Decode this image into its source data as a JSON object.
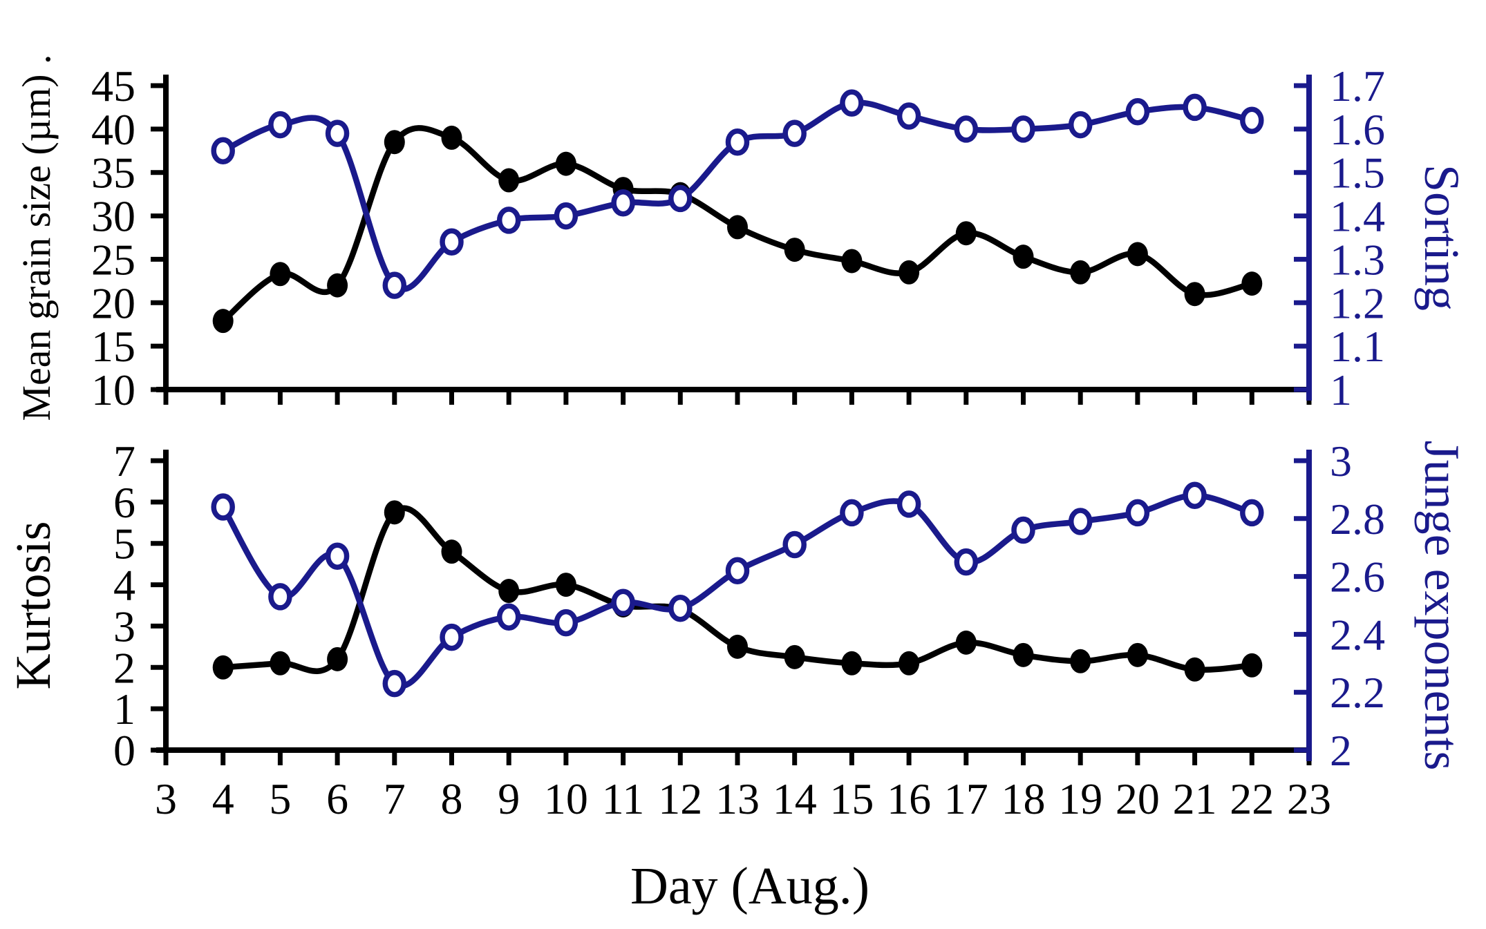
{
  "x_axis_label": "Day (Aug.)",
  "colors": {
    "black_series": "#000000",
    "blue_series": "#1a1a8c",
    "background": "#ffffff"
  },
  "chart_data": [
    {
      "type": "line",
      "panel": "top",
      "x": {
        "label": "Day (Aug.)",
        "range": [
          3,
          23
        ],
        "tick_step": 1,
        "days": [
          4,
          5,
          6,
          7,
          8,
          9,
          10,
          11,
          12,
          13,
          14,
          15,
          16,
          17,
          18,
          19,
          20,
          21,
          22
        ]
      },
      "left_axis": {
        "label": "Mean grain size (µm) .",
        "range": [
          10,
          45
        ],
        "ticks": [
          45,
          40,
          35,
          30,
          25,
          20,
          15,
          10
        ],
        "color": "#000000"
      },
      "right_axis": {
        "label": "Sorting",
        "range": [
          1,
          1.7
        ],
        "ticks": [
          1.7,
          1.6,
          1.5,
          1.4,
          1.3,
          1.2,
          1.1,
          1
        ],
        "color": "#1a1a8c"
      },
      "series": [
        {
          "name": "mean-grain-size",
          "label": "Mean grain size",
          "axis": "left",
          "marker": "filled-circle",
          "color": "#000000",
          "values": [
            17.9,
            23.3,
            22.0,
            38.5,
            39.0,
            34.1,
            36.0,
            33.1,
            32.5,
            28.7,
            26.1,
            24.8,
            23.5,
            28.0,
            25.3,
            23.5,
            25.6,
            21.0,
            22.2
          ]
        },
        {
          "name": "sorting",
          "label": "Sorting",
          "axis": "right",
          "marker": "open-circle",
          "color": "#1a1a8c",
          "values": [
            1.55,
            1.61,
            1.59,
            1.24,
            1.34,
            1.39,
            1.4,
            1.43,
            1.44,
            1.57,
            1.59,
            1.66,
            1.63,
            1.6,
            1.6,
            1.61,
            1.64,
            1.65,
            1.62
          ]
        }
      ]
    },
    {
      "type": "line",
      "panel": "bottom",
      "x": {
        "label": "Day (Aug.)",
        "range": [
          3,
          23
        ],
        "tick_step": 1,
        "days": [
          4,
          5,
          6,
          7,
          8,
          9,
          10,
          11,
          12,
          13,
          14,
          15,
          16,
          17,
          18,
          19,
          20,
          21,
          22
        ]
      },
      "left_axis": {
        "label": "Kurtosis",
        "range": [
          0,
          7
        ],
        "ticks": [
          7,
          6,
          5,
          4,
          3,
          2,
          1,
          0
        ],
        "color": "#000000"
      },
      "right_axis": {
        "label": "Junge exponents",
        "range": [
          2,
          3
        ],
        "ticks": [
          3,
          2.8,
          2.6,
          2.4,
          2.2,
          2
        ],
        "color": "#1a1a8c"
      },
      "series": [
        {
          "name": "kurtosis",
          "label": "Kurtosis",
          "axis": "left",
          "marker": "filled-circle",
          "color": "#000000",
          "values": [
            2.0,
            2.1,
            2.2,
            5.75,
            4.8,
            3.85,
            4.0,
            3.5,
            3.4,
            2.5,
            2.25,
            2.1,
            2.1,
            2.6,
            2.3,
            2.15,
            2.3,
            1.95,
            2.05
          ]
        },
        {
          "name": "junge-exponents",
          "label": "Junge exponents",
          "axis": "right",
          "marker": "open-circle",
          "color": "#1a1a8c",
          "values": [
            2.84,
            2.53,
            2.67,
            2.23,
            2.39,
            2.46,
            2.44,
            2.51,
            2.49,
            2.62,
            2.71,
            2.82,
            2.85,
            2.65,
            2.76,
            2.79,
            2.82,
            2.88,
            2.82
          ]
        }
      ]
    }
  ]
}
